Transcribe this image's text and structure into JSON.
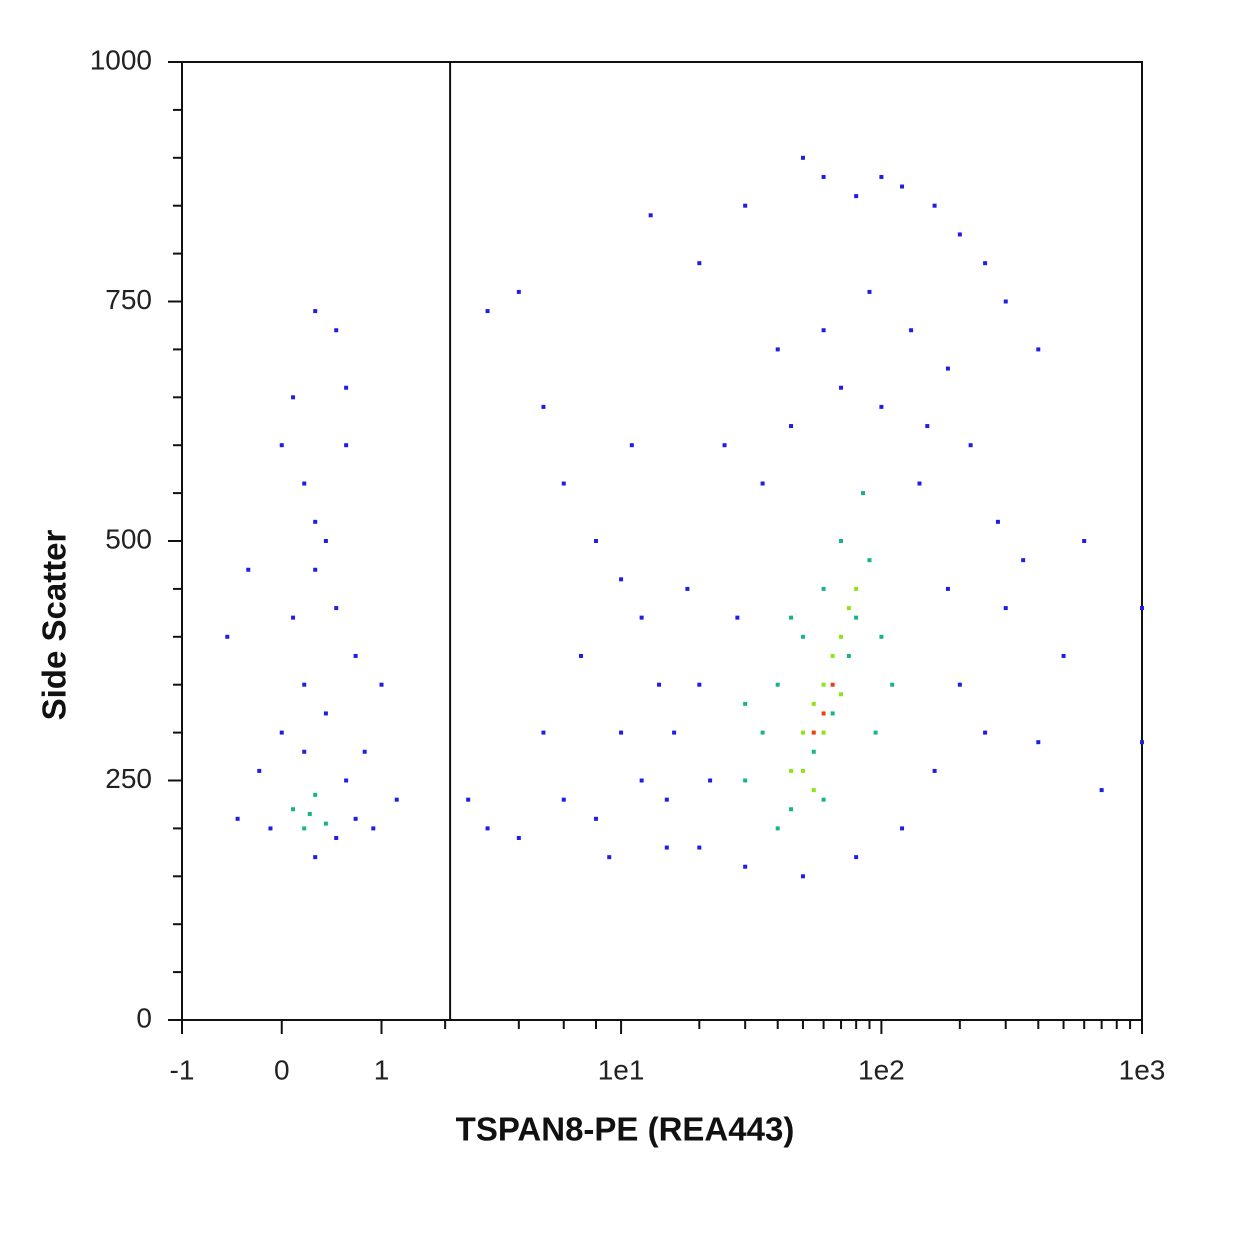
{
  "chart_data": {
    "type": "scatter",
    "x_label": "TSPAN8-PE (REA443)",
    "y_label": "Side Scatter",
    "xscale": "asinh",
    "xlim": [
      -1,
      1000
    ],
    "ylim": [
      0,
      1000
    ],
    "xticks": [
      -1,
      0,
      1,
      {
        "value": 10,
        "label": "1e1"
      },
      {
        "value": 100,
        "label": "1e2"
      },
      {
        "value": 1000,
        "label": "1e3"
      }
    ],
    "x_minor_ticks": [
      2,
      4,
      6,
      8,
      20,
      30,
      40,
      50,
      60,
      70,
      80,
      90,
      200,
      300,
      400,
      500,
      600,
      700,
      800,
      900
    ],
    "yticks": [
      0,
      250,
      500,
      750,
      1000
    ],
    "y_minor_ticks": [
      50,
      100,
      150,
      200,
      300,
      350,
      400,
      450,
      550,
      600,
      650,
      700,
      800,
      850,
      900,
      950
    ],
    "gate_x": 2.1,
    "series": [
      {
        "color": "#1e1ee6",
        "x": [
          0.1,
          0.3,
          0.5,
          0.6,
          0.2,
          0.4,
          0.3,
          0.1,
          0.5,
          -0.3,
          0.7,
          0.2,
          0.0,
          0.4,
          0.8,
          -0.2,
          0.6,
          -0.1,
          0.7,
          0.9,
          0.3,
          -0.4,
          1.2,
          1.0,
          0.3,
          0.0,
          0.6,
          -0.5,
          0.2,
          0.5,
          3,
          4,
          6,
          5,
          8,
          10,
          12,
          3,
          4,
          6,
          8,
          10,
          12,
          7,
          15,
          9,
          14,
          11,
          13,
          5,
          2.5,
          20,
          30,
          50,
          60,
          80,
          100,
          120,
          160,
          200,
          250,
          300,
          400,
          40,
          60,
          90,
          130,
          180,
          25,
          35,
          150,
          220,
          280,
          300,
          350,
          500,
          600,
          700,
          400,
          1000,
          1000,
          18,
          20,
          16,
          15,
          20,
          30,
          50,
          80,
          120,
          160,
          200,
          180,
          140,
          100,
          70,
          45,
          22,
          28,
          250
        ],
        "values": [
          650,
          740,
          720,
          600,
          560,
          500,
          470,
          420,
          430,
          470,
          380,
          350,
          300,
          320,
          280,
          260,
          250,
          200,
          210,
          200,
          170,
          210,
          230,
          350,
          520,
          600,
          660,
          400,
          280,
          190,
          740,
          760,
          560,
          640,
          500,
          460,
          420,
          200,
          190,
          230,
          210,
          300,
          250,
          380,
          180,
          170,
          350,
          600,
          840,
          300,
          230,
          790,
          850,
          900,
          880,
          860,
          880,
          870,
          850,
          820,
          790,
          750,
          700,
          700,
          720,
          760,
          720,
          680,
          600,
          560,
          620,
          600,
          520,
          430,
          480,
          380,
          500,
          240,
          290,
          430,
          290,
          450,
          350,
          300,
          230,
          180,
          160,
          150,
          170,
          200,
          260,
          350,
          450,
          560,
          640,
          660,
          620,
          250,
          420,
          300
        ]
      },
      {
        "color": "#14b48c",
        "x": [
          0.1,
          0.2,
          0.3,
          0.25,
          0.4,
          30,
          35,
          40,
          45,
          50,
          55,
          60,
          65,
          70,
          75,
          80,
          90,
          100,
          110,
          40,
          45,
          85,
          95,
          30,
          60
        ],
        "values": [
          220,
          200,
          235,
          215,
          205,
          250,
          300,
          350,
          220,
          400,
          280,
          450,
          320,
          500,
          380,
          420,
          480,
          400,
          350,
          200,
          420,
          550,
          300,
          330,
          230
        ]
      },
      {
        "color": "#8ce614",
        "x": [
          45,
          50,
          55,
          60,
          65,
          70,
          75,
          50,
          60,
          70,
          80,
          55
        ],
        "values": [
          260,
          300,
          330,
          350,
          380,
          400,
          430,
          260,
          300,
          340,
          450,
          240
        ]
      },
      {
        "color": "#f03c14",
        "x": [
          55,
          60,
          65
        ],
        "values": [
          300,
          320,
          350
        ]
      }
    ]
  }
}
